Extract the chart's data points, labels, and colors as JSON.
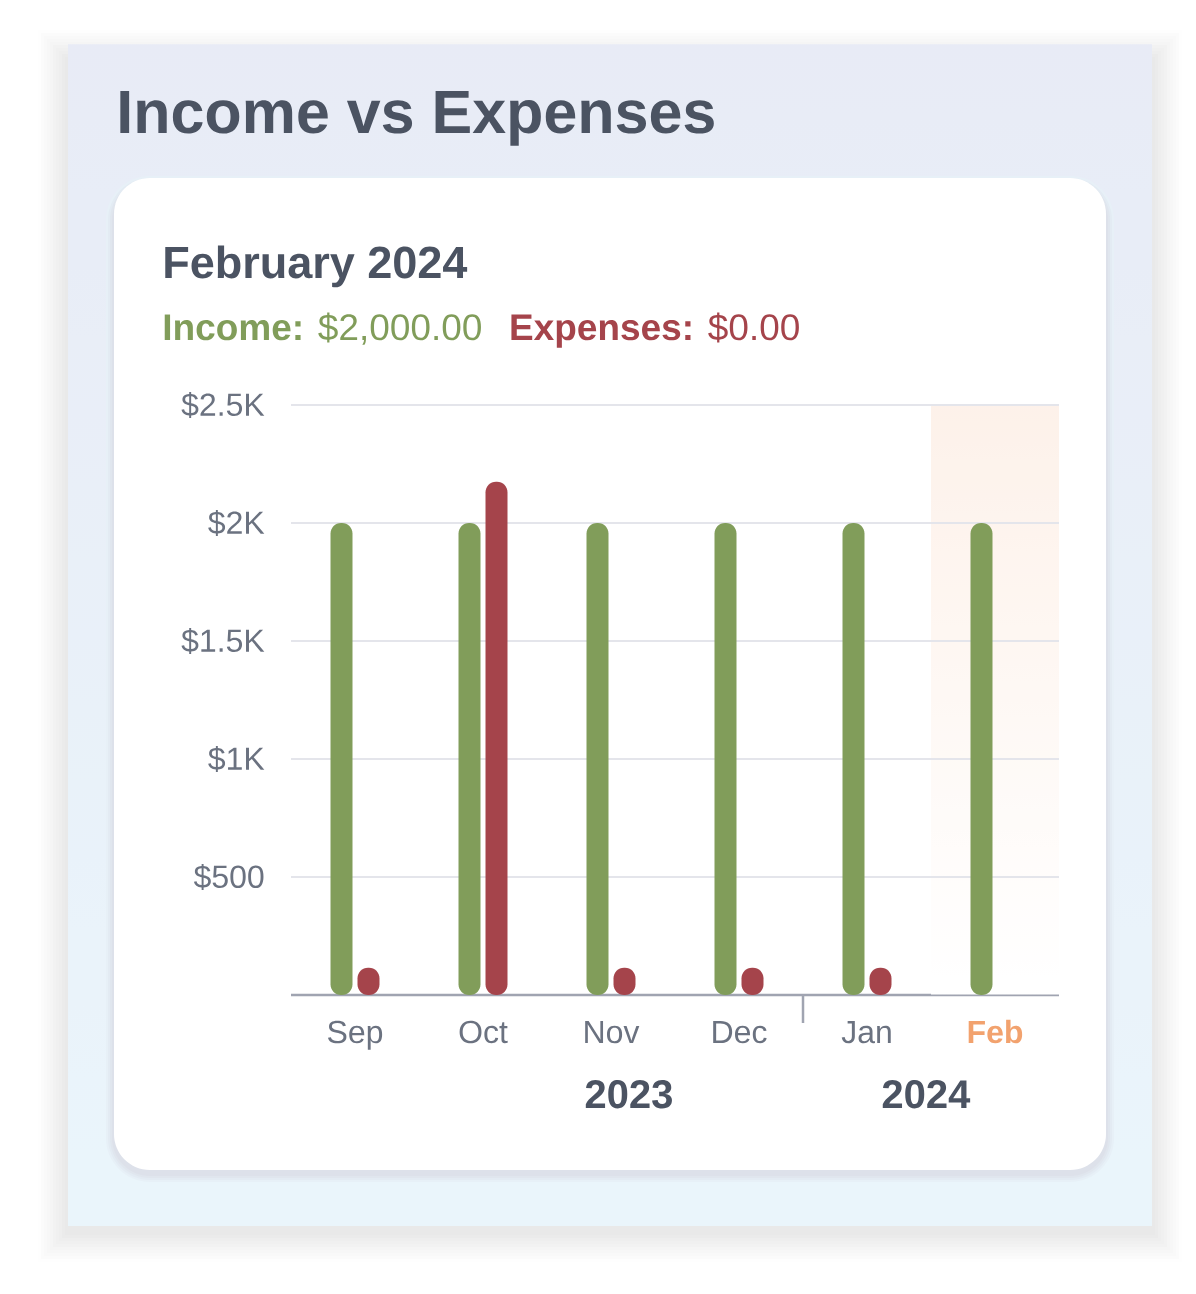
{
  "chart_data": {
    "type": "bar",
    "title": "Income vs Expenses",
    "subtitle": "February 2024",
    "categories": [
      "Sep",
      "Oct",
      "Nov",
      "Dec",
      "Jan",
      "Feb"
    ],
    "series": [
      {
        "color": "#819d5a",
        "values": [
          2000,
          2000,
          2000,
          2000,
          2000,
          2000
        ]
      },
      {
        "color": "#a5444b",
        "values": [
          115,
          2175,
          115,
          115,
          115,
          0
        ]
      }
    ],
    "ylim": [
      0,
      2500
    ],
    "yticks": [
      {
        "value": 500,
        "label": "$500"
      },
      {
        "value": 1000,
        "label": "$1K"
      },
      {
        "value": 1500,
        "label": "$1.5K"
      },
      {
        "value": 2000,
        "label": "$2K"
      },
      {
        "value": 2500,
        "label": "$2.5K"
      }
    ],
    "grid": "y",
    "bands": [
      {
        "axis": "x",
        "from": "Feb",
        "to": "Feb",
        "color": "#f2a26e"
      }
    ],
    "annotations": [
      "**Income:** $2,000.00",
      "**Expenses:** $0.00",
      "2023",
      "2024"
    ]
  }
}
